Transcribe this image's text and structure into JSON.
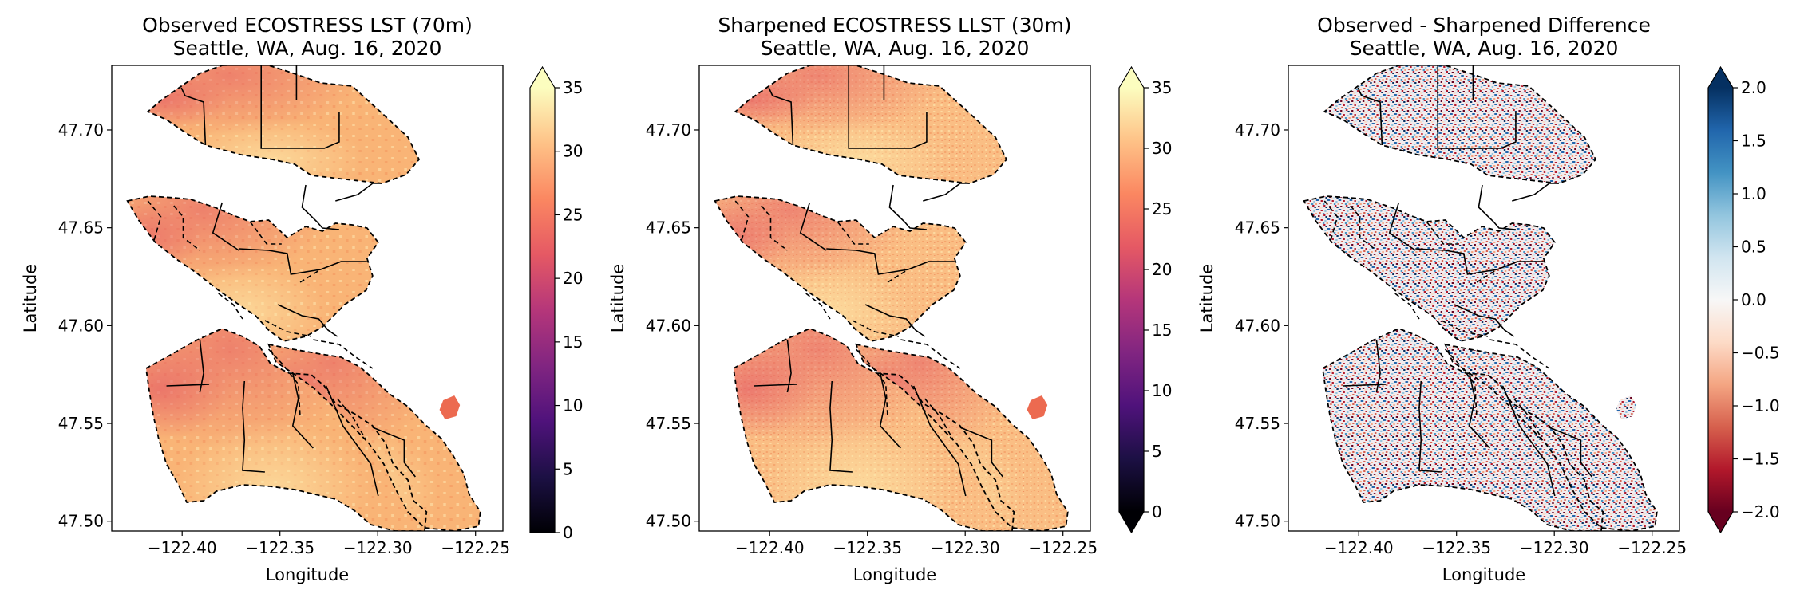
{
  "panels": [
    {
      "title_line1": "Observed ECOSTRESS LST (70m)",
      "title_line2": "Seattle, WA, Aug. 16, 2020",
      "xlabel": "Longitude",
      "ylabel": "Latitude",
      "xticks": [
        "−122.40",
        "−122.35",
        "−122.30",
        "−122.25"
      ],
      "yticks": [
        "47.70",
        "47.65",
        "47.60",
        "47.55",
        "47.50"
      ],
      "colorbar": {
        "cmap": "magma",
        "extend": "max",
        "ticks": [
          "0",
          "5",
          "10",
          "15",
          "20",
          "25",
          "30",
          "35"
        ],
        "range": [
          0,
          35
        ]
      }
    },
    {
      "title_line1": "Sharpened ECOSTRESS LLST (30m)",
      "title_line2": "Seattle, WA, Aug. 16, 2020",
      "xlabel": "Longitude",
      "ylabel": "Latitude",
      "xticks": [
        "−122.40",
        "−122.35",
        "−122.30",
        "−122.25"
      ],
      "yticks": [
        "47.70",
        "47.65",
        "47.60",
        "47.55",
        "47.50"
      ],
      "colorbar": {
        "cmap": "magma",
        "extend": "both",
        "ticks": [
          "0",
          "5",
          "10",
          "15",
          "20",
          "25",
          "30",
          "35"
        ],
        "range": [
          0,
          35
        ]
      }
    },
    {
      "title_line1": "Observed - Sharpened Difference",
      "title_line2": "Seattle, WA, Aug. 16, 2020",
      "xlabel": "Longitude",
      "ylabel": "Latitude",
      "xticks": [
        "−122.40",
        "−122.35",
        "−122.30",
        "−122.25"
      ],
      "yticks": [
        "47.70",
        "47.65",
        "47.60",
        "47.55",
        "47.50"
      ],
      "colorbar": {
        "cmap": "RdBu",
        "extend": "both",
        "ticks": [
          "−2.0",
          "−1.5",
          "−1.0",
          "−0.5",
          "0.0",
          "0.5",
          "1.0",
          "1.5",
          "2.0"
        ],
        "range": [
          -2.0,
          2.0
        ]
      }
    }
  ],
  "colors": {
    "magma": [
      "#000004",
      "#1c1044",
      "#4f127b",
      "#812581",
      "#b5367a",
      "#e55964",
      "#fb8761",
      "#fec287",
      "#fcfdbf"
    ],
    "rdbu": [
      "#67001f",
      "#b2182b",
      "#d6604d",
      "#f4a582",
      "#fddbc7",
      "#f7f7f7",
      "#d1e5f0",
      "#92c5de",
      "#4393c3",
      "#2166ac",
      "#053061"
    ],
    "land_observed": "#f9b476",
    "land_sharpened": "#fabe84",
    "hot_spot": "#ec6a50",
    "diff_mid": "#f2ecee"
  }
}
